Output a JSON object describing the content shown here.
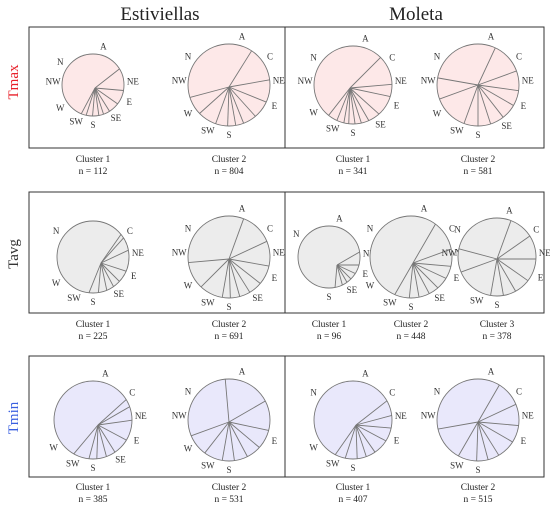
{
  "columns": [
    {
      "name": "Estiviellas",
      "dx": 0
    },
    {
      "name": "Moleta",
      "dx": 266
    }
  ],
  "rows": [
    {
      "label": "Tmax",
      "color": "#e8202a",
      "fill": "#fde8e8"
    },
    {
      "label": "Tavg",
      "color": "#333333",
      "fill": "#ececec"
    },
    {
      "label": "Tmin",
      "color": "#3a5fe0",
      "fill": "#e9e8fb"
    }
  ],
  "cluster_word": "Cluster",
  "n_prefix": "n = ",
  "chart_data": [
    {
      "type": "pie",
      "row": "Tmax",
      "site": "Estiviellas",
      "cluster": "Cluster 1",
      "n": 112,
      "labels": [
        "A",
        "NE",
        "E",
        "SE",
        "S",
        "SW",
        "W",
        "NW",
        "N"
      ]
    },
    {
      "type": "pie",
      "row": "Tmax",
      "site": "Estiviellas",
      "cluster": "Cluster 2",
      "n": 804,
      "labels": [
        "A",
        "C",
        "NE",
        "E",
        "S",
        "SW",
        "W",
        "NW",
        "N"
      ]
    },
    {
      "type": "pie",
      "row": "Tmax",
      "site": "Moleta",
      "cluster": "Cluster 1",
      "n": 341,
      "labels": [
        "A",
        "C",
        "NE",
        "E",
        "SE",
        "S",
        "SW",
        "W",
        "NW",
        "N"
      ]
    },
    {
      "type": "pie",
      "row": "Tmax",
      "site": "Moleta",
      "cluster": "Cluster 2",
      "n": 581,
      "labels": [
        "A",
        "C",
        "NE",
        "E",
        "SE",
        "S",
        "SW",
        "W",
        "NW",
        "N"
      ]
    },
    {
      "type": "pie",
      "row": "Tavg",
      "site": "Estiviellas",
      "cluster": "Cluster 1",
      "n": 225,
      "labels": [
        "C",
        "NE",
        "E",
        "SE",
        "S",
        "SW",
        "W",
        "N"
      ]
    },
    {
      "type": "pie",
      "row": "Tavg",
      "site": "Estiviellas",
      "cluster": "Cluster 2",
      "n": 691,
      "labels": [
        "A",
        "C",
        "NE",
        "E",
        "SE",
        "S",
        "SW",
        "W",
        "NW",
        "N"
      ]
    },
    {
      "type": "pie",
      "row": "Tavg",
      "site": "Moleta",
      "cluster": "Cluster 1",
      "n": 96,
      "labels": [
        "A",
        "NE",
        "E",
        "SE",
        "S",
        "N"
      ]
    },
    {
      "type": "pie",
      "row": "Tavg",
      "site": "Moleta",
      "cluster": "Cluster 2",
      "n": 448,
      "labels": [
        "A",
        "C",
        "NE",
        "E",
        "SE",
        "S",
        "SW",
        "W",
        "N"
      ]
    },
    {
      "type": "pie",
      "row": "Tavg",
      "site": "Moleta",
      "cluster": "Cluster 3",
      "n": 378,
      "labels": [
        "A",
        "C",
        "NE",
        "E",
        "S",
        "SW",
        "NW",
        "N"
      ]
    },
    {
      "type": "pie",
      "row": "Tmin",
      "site": "Estiviellas",
      "cluster": "Cluster 1",
      "n": 385,
      "labels": [
        "A",
        "C",
        "NE",
        "E",
        "SE",
        "S",
        "SW",
        "W"
      ]
    },
    {
      "type": "pie",
      "row": "Tmin",
      "site": "Estiviellas",
      "cluster": "Cluster 2",
      "n": 531,
      "labels": [
        "A",
        "E",
        "S",
        "SW",
        "W",
        "NW",
        "N"
      ]
    },
    {
      "type": "pie",
      "row": "Tmin",
      "site": "Moleta",
      "cluster": "Cluster 1",
      "n": 407,
      "labels": [
        "A",
        "C",
        "NE",
        "E",
        "S",
        "SW",
        "W",
        "N"
      ]
    },
    {
      "type": "pie",
      "row": "Tmin",
      "site": "Moleta",
      "cluster": "Cluster 2",
      "n": 515,
      "labels": [
        "A",
        "C",
        "NE",
        "E",
        "S",
        "SW",
        "NW",
        "N"
      ]
    }
  ]
}
